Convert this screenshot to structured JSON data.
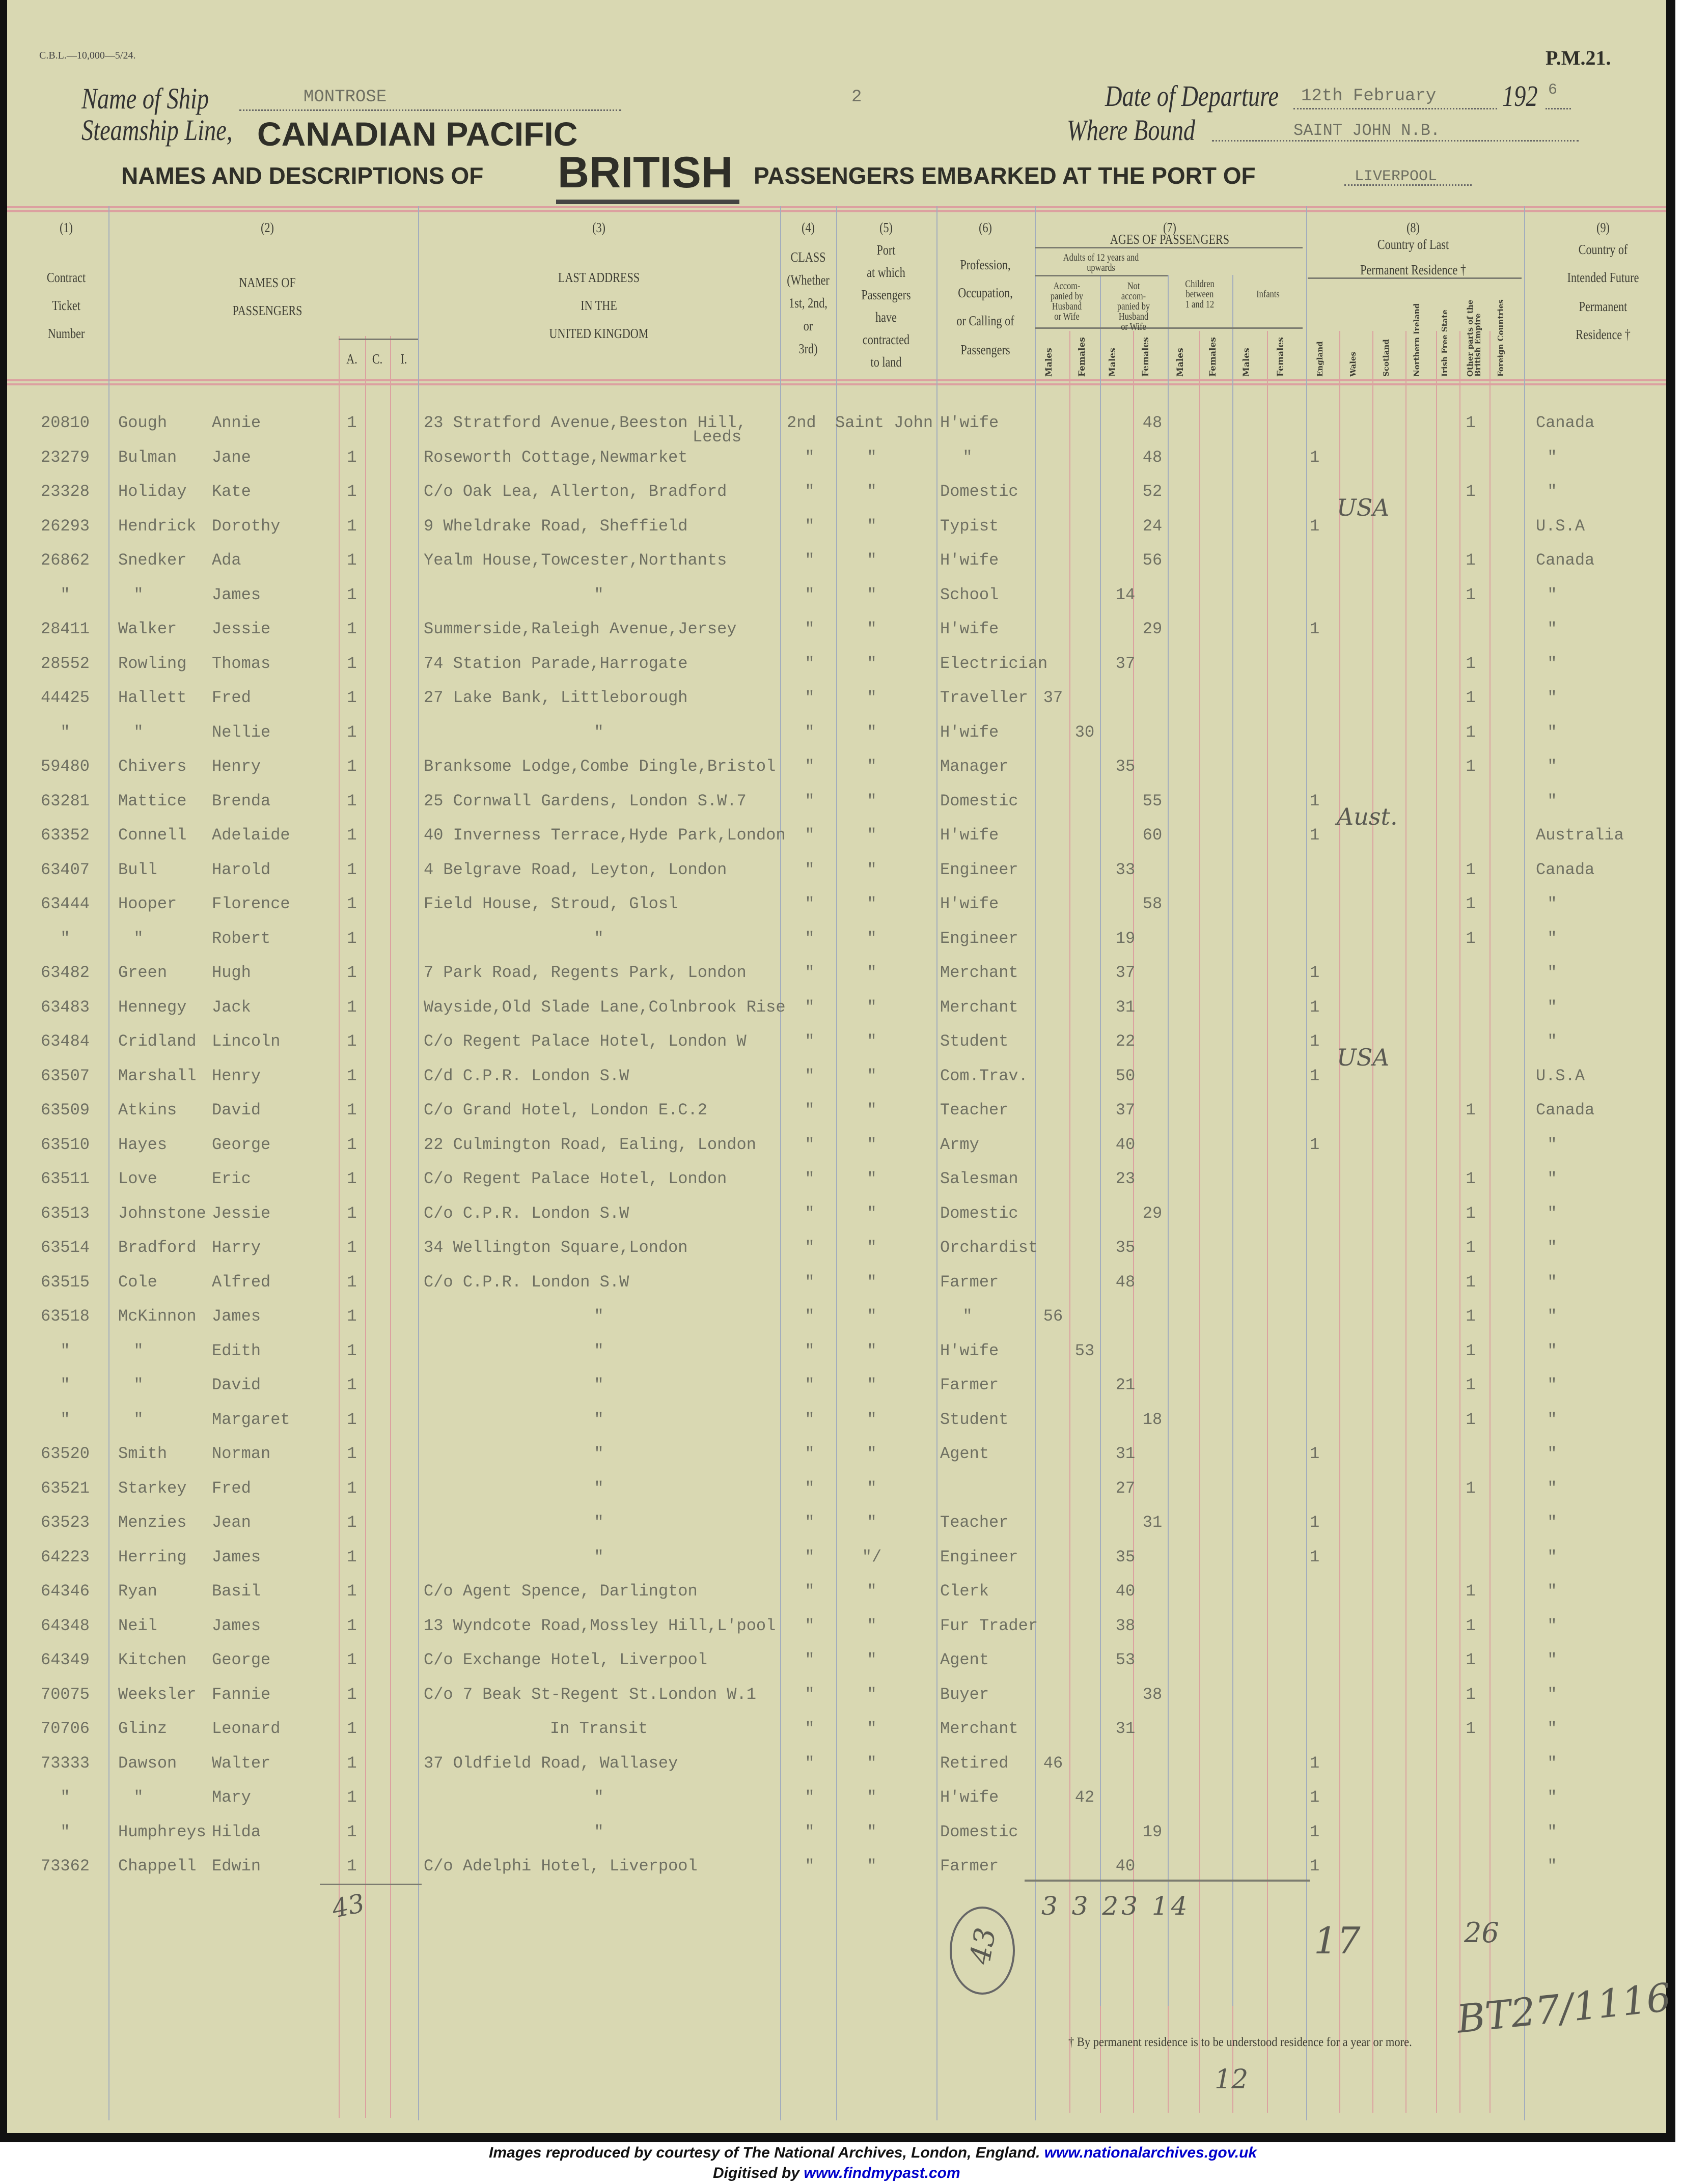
{
  "header": {
    "form_code": "C.B.L.—10,000—5/24.",
    "form_number": "P.M.21.",
    "ship_label": "Name of Ship",
    "ship_name": "MONTROSE",
    "sheet_number": "2",
    "line_label": "Steamship Line,",
    "line_name": "CANADIAN PACIFIC",
    "title_part1": "NAMES AND DESCRIPTIONS OF",
    "title_british": "BRITISH",
    "title_part2": "PASSENGERS EMBARKED AT THE PORT OF",
    "port_name": "LIVERPOOL",
    "departure_label": "Date of Departure",
    "departure_date": "12th February",
    "departure_year_prefix": "192",
    "departure_year_suffix": "6",
    "bound_label": "Where Bound",
    "bound_value": "SAINT JOHN N.B."
  },
  "columns": {
    "c1": {
      "num": "(1)",
      "lines": [
        "Contract",
        "Ticket",
        "Number"
      ]
    },
    "c2": {
      "num": "(2)",
      "lines": [
        "NAMES OF",
        "PASSENGERS"
      ],
      "sub": [
        "A.",
        "C.",
        "I."
      ]
    },
    "c3": {
      "num": "(3)",
      "lines": [
        "LAST ADDRESS",
        "IN THE",
        "UNITED KINGDOM"
      ]
    },
    "c4": {
      "num": "(4)",
      "lines": [
        "CLASS",
        "(Whether",
        "1st, 2nd,",
        "or",
        "3rd)"
      ]
    },
    "c5": {
      "num": "(5)",
      "lines": [
        "Port",
        "at which",
        "Passengers",
        "have",
        "contracted",
        "to land"
      ]
    },
    "c6": {
      "num": "(6)",
      "lines": [
        "Profession,",
        "Occupation,",
        "or Calling of",
        "Passengers"
      ]
    },
    "c7": {
      "num": "(7)",
      "title": "AGES OF PASSENGERS",
      "adults": "Adults of 12 years and upwards",
      "accompanied": "Accom-panied by Husband or Wife",
      "not_accompanied": "Not accom-panied by Husband or Wife",
      "children": "Children between 1 and 12",
      "infants": "Infants",
      "sex": [
        "Males",
        "Females",
        "Males",
        "Females",
        "Males",
        "Females",
        "Males",
        "Females"
      ]
    },
    "c8": {
      "num": "(8)",
      "lines": [
        "Country of Last",
        "Permanent Residence †"
      ],
      "countries": [
        "England",
        "Wales",
        "Scotland",
        "Northern Ireland",
        "Irish Free State",
        "Other parts of the British Empire",
        "Foreign Countries"
      ]
    },
    "c9": {
      "num": "(9)",
      "lines": [
        "Country of",
        "Intended Future",
        "Permanent",
        "Residence †"
      ]
    }
  },
  "rows": [
    {
      "ticket": "20810",
      "surname": "Gough",
      "given": "Annie",
      "adult": "1",
      "address": "23 Stratford Avenue,Beeston Hill,",
      "address2": "Leeds",
      "class": "2nd",
      "port": "Saint John",
      "profession": "H'wife",
      "age": "48",
      "age_group": "na_f",
      "country": "other",
      "intended": "Canada"
    },
    {
      "ticket": "23279",
      "surname": "Bulman",
      "given": "Jane",
      "adult": "1",
      "address": "Roseworth Cottage,Newmarket",
      "class": "\"",
      "port": "\"",
      "profession": "\"",
      "age": "48",
      "age_group": "na_f",
      "country": "england",
      "intended": "\""
    },
    {
      "ticket": "23328",
      "surname": "Holiday",
      "given": "Kate",
      "adult": "1",
      "address": "C/o Oak Lea, Allerton, Bradford",
      "class": "\"",
      "port": "\"",
      "profession": "Domestic",
      "age": "52",
      "age_group": "na_f",
      "country": "other",
      "intended": "\""
    },
    {
      "ticket": "26293",
      "surname": "Hendrick",
      "given": "Dorothy",
      "adult": "1",
      "address": "9 Wheldrake Road, Sheffield",
      "class": "\"",
      "port": "\"",
      "profession": "Typist",
      "age": "24",
      "age_group": "na_f",
      "country": "england",
      "note": "USA",
      "intended": "U.S.A"
    },
    {
      "ticket": "26862",
      "surname": "Snedker",
      "given": "Ada",
      "adult": "1",
      "address": "Yealm House,Towcester,Northants",
      "class": "\"",
      "port": "\"",
      "profession": "H'wife",
      "age": "56",
      "age_group": "na_f",
      "country": "other",
      "intended": "Canada"
    },
    {
      "ticket": "\"",
      "surname": "\"",
      "given": "James",
      "adult": "1",
      "address": "\"",
      "class": "\"",
      "port": "\"",
      "profession": "School",
      "age": "14",
      "age_group": "na_m",
      "country": "other",
      "intended": "\""
    },
    {
      "ticket": "28411",
      "surname": "Walker",
      "given": "Jessie",
      "adult": "1",
      "address": "Summerside,Raleigh Avenue,Jersey",
      "class": "\"",
      "port": "\"",
      "profession": "H'wife",
      "age": "29",
      "age_group": "na_f",
      "country": "england",
      "intended": "\""
    },
    {
      "ticket": "28552",
      "surname": "Rowling",
      "given": "Thomas",
      "adult": "1",
      "address": "74 Station Parade,Harrogate",
      "class": "\"",
      "port": "\"",
      "profession": "Electrician",
      "age": "37",
      "age_group": "na_m",
      "country": "other",
      "intended": "\""
    },
    {
      "ticket": "44425",
      "surname": "Hallett",
      "given": "Fred",
      "adult": "1",
      "address": "27 Lake Bank, Littleborough",
      "class": "\"",
      "port": "\"",
      "profession": "Traveller",
      "age": "37",
      "age_group": "acc_m",
      "country": "other",
      "intended": "\""
    },
    {
      "ticket": "\"",
      "surname": "\"",
      "given": "Nellie",
      "adult": "1",
      "address": "\"",
      "class": "\"",
      "port": "\"",
      "profession": "H'wife",
      "age": "30",
      "age_group": "acc_f",
      "country": "other",
      "intended": "\""
    },
    {
      "ticket": "59480",
      "surname": "Chivers",
      "given": "Henry",
      "adult": "1",
      "address": "Branksome Lodge,Combe Dingle,Bristol",
      "class": "\"",
      "port": "\"",
      "profession": "Manager",
      "age": "35",
      "age_group": "na_m",
      "country": "other",
      "intended": "\""
    },
    {
      "ticket": "63281",
      "surname": "Mattice",
      "given": "Brenda",
      "adult": "1",
      "address": "25 Cornwall Gardens, London S.W.7",
      "class": "\"",
      "port": "\"",
      "profession": "Domestic",
      "age": "55",
      "age_group": "na_f",
      "country": "england",
      "intended": "\""
    },
    {
      "ticket": "63352",
      "surname": "Connell",
      "given": "Adelaide",
      "adult": "1",
      "address": "40 Inverness Terrace,Hyde Park,London",
      "class": "\"",
      "port": "\"",
      "profession": "H'wife",
      "age": "60",
      "age_group": "na_f",
      "country": "england",
      "note": "Aust.",
      "intended": "Australia"
    },
    {
      "ticket": "63407",
      "surname": "Bull",
      "given": "Harold",
      "adult": "1",
      "address": "4 Belgrave Road, Leyton, London",
      "class": "\"",
      "port": "\"",
      "profession": "Engineer",
      "age": "33",
      "age_group": "na_m",
      "country": "other",
      "intended": "Canada"
    },
    {
      "ticket": "63444",
      "surname": "Hooper",
      "given": "Florence",
      "adult": "1",
      "address": "Field House, Stroud, Glosl",
      "class": "\"",
      "port": "\"",
      "profession": "H'wife",
      "age": "58",
      "age_group": "na_f",
      "country": "other",
      "intended": "\""
    },
    {
      "ticket": "\"",
      "surname": "\"",
      "given": "Robert",
      "adult": "1",
      "address": "\"",
      "class": "\"",
      "port": "\"",
      "profession": "Engineer",
      "age": "19",
      "age_group": "na_m",
      "country": "other",
      "intended": "\""
    },
    {
      "ticket": "63482",
      "surname": "Green",
      "given": "Hugh",
      "adult": "1",
      "address": "7 Park Road, Regents Park, London",
      "class": "\"",
      "port": "\"",
      "profession": "Merchant",
      "age": "37",
      "age_group": "na_m",
      "country": "england",
      "intended": "\""
    },
    {
      "ticket": "63483",
      "surname": "Hennegy",
      "given": "Jack",
      "adult": "1",
      "address": "Wayside,Old Slade Lane,Colnbrook Rise",
      "class": "\"",
      "port": "\"",
      "profession": "Merchant",
      "age": "31",
      "age_group": "na_m",
      "country": "england",
      "intended": "\""
    },
    {
      "ticket": "63484",
      "surname": "Cridland",
      "given": "Lincoln",
      "adult": "1",
      "address": "C/o Regent Palace Hotel, London W",
      "class": "\"",
      "port": "\"",
      "profession": "Student",
      "age": "22",
      "age_group": "na_m",
      "country": "england",
      "intended": "\""
    },
    {
      "ticket": "63507",
      "surname": "Marshall",
      "given": "Henry",
      "adult": "1",
      "address": "C/d C.P.R. London S.W",
      "class": "\"",
      "port": "\"",
      "profession": "Com.Trav.",
      "age": "50",
      "age_group": "na_m",
      "country": "england",
      "note": "USA",
      "intended": "U.S.A"
    },
    {
      "ticket": "63509",
      "surname": "Atkins",
      "given": "David",
      "adult": "1",
      "address": "C/o Grand Hotel, London E.C.2",
      "class": "\"",
      "port": "\"",
      "profession": "Teacher",
      "age": "37",
      "age_group": "na_m",
      "country": "other",
      "intended": "Canada"
    },
    {
      "ticket": "63510",
      "surname": "Hayes",
      "given": "George",
      "adult": "1",
      "address": "22 Culmington Road, Ealing, London",
      "class": "\"",
      "port": "\"",
      "profession": "Army",
      "age": "40",
      "age_group": "na_m",
      "country": "england",
      "intended": "\""
    },
    {
      "ticket": "63511",
      "surname": "Love",
      "given": "Eric",
      "adult": "1",
      "address": "C/o Regent Palace Hotel, London",
      "class": "\"",
      "port": "\"",
      "profession": "Salesman",
      "age": "23",
      "age_group": "na_m",
      "country": "other",
      "intended": "\""
    },
    {
      "ticket": "63513",
      "surname": "Johnstone",
      "given": "Jessie",
      "adult": "1",
      "address": "C/o C.P.R. London S.W",
      "class": "\"",
      "port": "\"",
      "profession": "Domestic",
      "age": "29",
      "age_group": "na_f",
      "country": "other",
      "intended": "\""
    },
    {
      "ticket": "63514",
      "surname": "Bradford",
      "given": "Harry",
      "adult": "1",
      "address": "34 Wellington Square,London",
      "class": "\"",
      "port": "\"",
      "profession": "Orchardist",
      "age": "35",
      "age_group": "na_m",
      "country": "other",
      "intended": "\""
    },
    {
      "ticket": "63515",
      "surname": "Cole",
      "given": "Alfred",
      "adult": "1",
      "address": "C/o C.P.R. London S.W",
      "class": "\"",
      "port": "\"",
      "profession": "Farmer",
      "age": "48",
      "age_group": "na_m",
      "country": "other",
      "intended": "\""
    },
    {
      "ticket": "63518",
      "surname": "McKinnon",
      "given": "James",
      "adult": "1",
      "address": "\"",
      "class": "\"",
      "port": "\"",
      "profession": "\"",
      "age": "56",
      "age_group": "acc_m",
      "country": "other",
      "intended": "\""
    },
    {
      "ticket": "\"",
      "surname": "\"",
      "given": "Edith",
      "adult": "1",
      "address": "\"",
      "class": "\"",
      "port": "\"",
      "profession": "H'wife",
      "age": "53",
      "age_group": "acc_f",
      "country": "other",
      "intended": "\""
    },
    {
      "ticket": "\"",
      "surname": "\"",
      "given": "David",
      "adult": "1",
      "address": "\"",
      "class": "\"",
      "port": "\"",
      "profession": "Farmer",
      "age": "21",
      "age_group": "na_m",
      "country": "other",
      "intended": "\""
    },
    {
      "ticket": "\"",
      "surname": "\"",
      "given": "Margaret",
      "adult": "1",
      "address": "\"",
      "class": "\"",
      "port": "\"",
      "profession": "Student",
      "age": "18",
      "age_group": "na_f",
      "country": "other",
      "intended": "\""
    },
    {
      "ticket": "63520",
      "surname": "Smith",
      "given": "Norman",
      "adult": "1",
      "address": "\"",
      "class": "\"",
      "port": "\"",
      "profession": "Agent",
      "age": "31",
      "age_group": "na_m",
      "country": "england",
      "intended": "\""
    },
    {
      "ticket": "63521",
      "surname": "Starkey",
      "given": "Fred",
      "adult": "1",
      "address": "\"",
      "class": "\"",
      "port": "\"",
      "profession": "",
      "age": "27",
      "age_group": "na_m",
      "country": "other",
      "intended": "\""
    },
    {
      "ticket": "63523",
      "surname": "Menzies",
      "given": "Jean",
      "adult": "1",
      "address": "\"",
      "class": "\"",
      "port": "\"",
      "profession": "Teacher",
      "age": "31",
      "age_group": "na_f",
      "country": "england",
      "intended": "\""
    },
    {
      "ticket": "64223",
      "surname": "Herring",
      "given": "James",
      "adult": "1",
      "address": "\"",
      "class": "\"",
      "port": "\"/",
      "profession": "Engineer",
      "age": "35",
      "age_group": "na_m",
      "country": "england",
      "intended": "\""
    },
    {
      "ticket": "64346",
      "surname": "Ryan",
      "given": "Basil",
      "adult": "1",
      "address": "C/o Agent Spence, Darlington",
      "class": "\"",
      "port": "\"",
      "profession": "Clerk",
      "age": "40",
      "age_group": "na_m",
      "country": "other",
      "intended": "\""
    },
    {
      "ticket": "64348",
      "surname": "Neil",
      "given": "James",
      "adult": "1",
      "address": "13 Wyndcote Road,Mossley Hill,L'pool",
      "class": "\"",
      "port": "\"",
      "profession": "Fur Trader",
      "age": "38",
      "age_group": "na_m",
      "country": "other",
      "intended": "\""
    },
    {
      "ticket": "64349",
      "surname": "Kitchen",
      "given": "George",
      "adult": "1",
      "address": "C/o Exchange Hotel, Liverpool",
      "class": "\"",
      "port": "\"",
      "profession": "Agent",
      "age": "53",
      "age_group": "na_m",
      "country": "other",
      "intended": "\""
    },
    {
      "ticket": "70075",
      "surname": "Weeksler",
      "given": "Fannie",
      "adult": "1",
      "address": "C/o 7 Beak St-Regent St.London W.1",
      "class": "\"",
      "port": "\"",
      "profession": "Buyer",
      "age": "38",
      "age_group": "na_f",
      "country": "other",
      "intended": "\""
    },
    {
      "ticket": "70706",
      "surname": "Glinz",
      "given": "Leonard",
      "adult": "1",
      "address": "In Transit",
      "class": "\"",
      "port": "\"",
      "profession": "Merchant",
      "age": "31",
      "age_group": "na_m",
      "country": "other",
      "intended": "\""
    },
    {
      "ticket": "73333",
      "surname": "Dawson",
      "given": "Walter",
      "adult": "1",
      "address": "37 Oldfield Road, Wallasey",
      "class": "\"",
      "port": "\"",
      "profession": "Retired",
      "age": "46",
      "age_group": "acc_m",
      "country": "england",
      "intended": "\""
    },
    {
      "ticket": "\"",
      "surname": "\"",
      "given": "Mary",
      "adult": "1",
      "address": "\"",
      "class": "\"",
      "port": "\"",
      "profession": "H'wife",
      "age": "42",
      "age_group": "acc_f",
      "country": "england",
      "intended": "\""
    },
    {
      "ticket": "\"",
      "surname": "Humphreys",
      "given": "Hilda",
      "adult": "1",
      "address": "\"",
      "class": "\"",
      "port": "\"",
      "profession": "Domestic",
      "age": "19",
      "age_group": "na_f",
      "country": "england",
      "intended": "\""
    },
    {
      "ticket": "73362",
      "surname": "Chappell",
      "given": "Edwin",
      "adult": "1",
      "address": "C/o Adelphi Hotel, Liverpool",
      "class": "\"",
      "port": "\"",
      "profession": "Farmer",
      "age": "40",
      "age_group": "na_m",
      "country": "england",
      "intended": "\""
    }
  ],
  "totals": {
    "adults": "43",
    "ages": "3 3 23 14",
    "circled": "43",
    "england": "17",
    "other_empire": "26",
    "reference": "BT27/1116",
    "page": "12"
  },
  "footnote": "† By permanent residence is to be understood residence for a year or more.",
  "credits": {
    "line1_text": "Images reproduced by courtesy of The National Archives, London, England.",
    "line1_link": "www.nationalarchives.gov.uk",
    "line2_text": "Digitised by",
    "line2_link": "www.findmypast.com"
  },
  "colors": {
    "paper": "#d9d8b2",
    "rule_blue": "#a3adbd",
    "rule_red": "#dba2a0",
    "typewriter": "#6f7062",
    "link": "#0000cc"
  }
}
